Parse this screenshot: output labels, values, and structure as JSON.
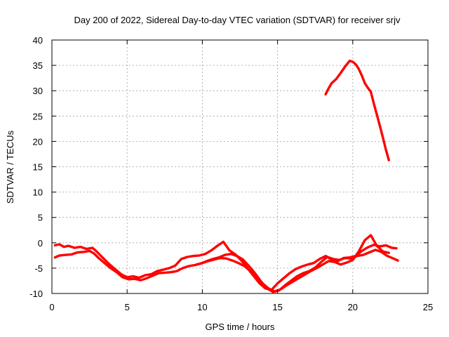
{
  "chart_data": {
    "type": "line",
    "title": "Day 200 of 2022, Sidereal Day-to-day VTEC variation (SDTVAR) for receiver srjv",
    "xlabel": "GPS time / hours",
    "ylabel": "SDTVAR / TECUs",
    "xlim": [
      0,
      25
    ],
    "ylim": [
      -10,
      40
    ],
    "xticks": [
      0,
      5,
      10,
      15,
      20,
      25
    ],
    "yticks": [
      -10,
      -5,
      0,
      5,
      10,
      15,
      20,
      25,
      30,
      35,
      40
    ],
    "grid": true,
    "legend": "none",
    "color": "#ff0000",
    "series": [
      {
        "name": "trace-a",
        "x": [
          0.2,
          0.5,
          0.8,
          1.1,
          1.5,
          1.9,
          2.3,
          2.7,
          3.0,
          3.4,
          3.8,
          4.2,
          4.6,
          5.0,
          5.4,
          5.8,
          6.2,
          6.6,
          7.0,
          7.4,
          7.8,
          8.2,
          8.6,
          9.0,
          9.4,
          9.8,
          10.2,
          10.6,
          11.0,
          11.4,
          11.8,
          12.2,
          12.6,
          13.0,
          13.4,
          13.8,
          14.2,
          14.6,
          15.0,
          15.4,
          15.8,
          16.2,
          16.6,
          17.0,
          17.4,
          17.8,
          18.2,
          18.6,
          19.0,
          19.4,
          19.8,
          20.2,
          20.6,
          21.0,
          21.4,
          21.8,
          22.2,
          22.6,
          22.9
        ],
        "y": [
          -0.5,
          -0.3,
          -0.8,
          -0.6,
          -1.0,
          -0.8,
          -1.2,
          -1.0,
          -1.8,
          -3.0,
          -4.2,
          -5.2,
          -6.2,
          -6.8,
          -6.6,
          -6.9,
          -6.4,
          -6.2,
          -5.6,
          -5.3,
          -5.0,
          -4.5,
          -3.2,
          -2.8,
          -2.6,
          -2.5,
          -2.2,
          -1.5,
          -0.6,
          0.2,
          -1.5,
          -2.3,
          -3.5,
          -5.0,
          -6.5,
          -8.0,
          -9.0,
          -9.3,
          -8.0,
          -7.0,
          -6.0,
          -5.2,
          -4.7,
          -4.3,
          -4.0,
          -3.2,
          -2.6,
          -3.3,
          -3.6,
          -3.0,
          -2.9,
          -2.6,
          -1.6,
          -0.9,
          -0.4,
          -0.7,
          -0.5,
          -1.0,
          -1.1
        ]
      },
      {
        "name": "trace-b",
        "x": [
          0.2,
          0.5,
          0.9,
          1.3,
          1.7,
          2.1,
          2.5,
          2.8,
          3.1,
          3.5,
          3.9,
          4.3,
          4.7,
          5.1,
          5.5,
          5.9,
          6.3,
          6.7,
          7.1,
          7.5,
          7.9,
          8.3,
          8.7,
          9.1,
          9.5,
          9.9,
          10.3,
          10.7,
          11.1,
          11.5,
          11.9,
          12.3,
          12.7,
          13.1,
          13.5,
          13.9,
          14.3,
          14.7,
          15.1,
          15.5,
          15.9,
          16.3,
          16.7,
          17.1,
          17.5,
          17.9,
          18.3,
          18.7,
          19.1,
          19.5,
          19.9,
          20.3,
          20.7,
          21.1,
          21.5,
          21.9,
          22.3,
          22.7,
          23.0
        ],
        "y": [
          -2.9,
          -2.5,
          -2.4,
          -2.3,
          -1.9,
          -1.8,
          -1.6,
          -2.1,
          -3.0,
          -4.0,
          -5.0,
          -5.8,
          -6.8,
          -7.2,
          -7.1,
          -7.4,
          -7.0,
          -6.5,
          -6.0,
          -5.9,
          -5.8,
          -5.6,
          -5.0,
          -4.6,
          -4.4,
          -4.1,
          -3.6,
          -3.2,
          -2.9,
          -2.4,
          -2.2,
          -2.6,
          -3.3,
          -4.6,
          -6.0,
          -7.6,
          -9.0,
          -9.7,
          -9.4,
          -8.4,
          -7.5,
          -6.6,
          -6.0,
          -5.6,
          -4.9,
          -3.8,
          -2.8,
          -3.2,
          -3.4,
          -3.0,
          -3.1,
          -2.6,
          -2.4,
          -1.9,
          -1.4,
          -1.8,
          -2.6,
          -3.1,
          -3.5
        ]
      },
      {
        "name": "trace-c",
        "x": [
          9.6,
          10.0,
          10.4,
          10.8,
          11.2,
          11.6,
          12.0,
          12.4,
          12.8,
          13.2,
          13.6,
          14.0,
          14.4,
          14.8,
          15.2,
          15.6,
          16.0,
          16.4,
          16.8,
          17.2,
          17.6,
          18.0,
          18.4,
          18.8,
          19.2,
          19.6,
          20.0,
          20.4,
          20.8,
          21.2,
          21.6,
          22.0,
          22.4
        ],
        "y": [
          -4.3,
          -4.0,
          -3.6,
          -3.3,
          -3.0,
          -3.1,
          -3.5,
          -4.0,
          -4.6,
          -5.6,
          -6.8,
          -8.0,
          -9.0,
          -9.6,
          -9.2,
          -8.4,
          -7.7,
          -7.0,
          -6.3,
          -5.6,
          -5.0,
          -4.3,
          -3.6,
          -3.8,
          -4.3,
          -3.9,
          -3.4,
          -1.7,
          0.5,
          1.5,
          -0.6,
          -1.7,
          -2.0
        ]
      },
      {
        "name": "trace-d",
        "x": [
          18.2,
          18.4,
          18.6,
          18.9,
          19.2,
          19.5,
          19.8,
          20.0,
          20.2,
          20.4,
          20.6,
          20.8,
          21.0,
          21.2,
          21.4,
          21.6,
          21.8,
          22.0,
          22.2,
          22.4
        ],
        "y": [
          29.3,
          30.5,
          31.5,
          32.3,
          33.5,
          34.8,
          35.9,
          35.7,
          35.2,
          34.3,
          33.0,
          31.5,
          30.6,
          29.8,
          27.5,
          25.3,
          23.1,
          20.8,
          18.4,
          16.3
        ]
      }
    ]
  }
}
